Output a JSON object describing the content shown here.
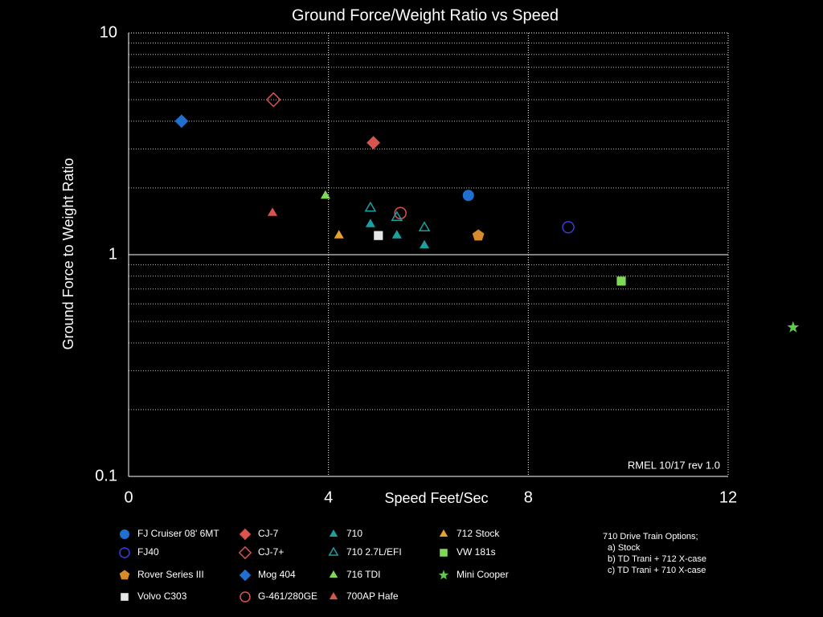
{
  "chart_data": {
    "type": "scatter",
    "title": "Ground Force/Weight Ratio vs Speed",
    "x_label": "Speed Feet/Sec",
    "y_label": "Ground Force to Weight Ratio",
    "xlim": [
      0,
      12
    ],
    "xticks": [
      0,
      4,
      8,
      12
    ],
    "ylim": [
      0.1,
      10
    ],
    "yticks": [
      10,
      1,
      0.1
    ],
    "log_y": true,
    "grid": true,
    "annotation": "RMEL 10/17 rev 1.0",
    "note": [
      "710 Drive Train Options;",
      "a) Stock",
      "b) TD Trani + 712 X-case",
      "c) TD Trani + 710 X-case"
    ],
    "series": [
      {
        "name": "FJ Cruiser 08' 6MT",
        "color": "#1f6fd1",
        "marker": "circle",
        "filled": true,
        "x": [
          6.8
        ],
        "values": [
          1.85
        ]
      },
      {
        "name": "FJ40",
        "color": "#3b3bdc",
        "marker": "circle",
        "filled": false,
        "x": [
          8.8
        ],
        "values": [
          1.33
        ]
      },
      {
        "name": "Rover Series III",
        "color": "#d98a2a",
        "marker": "pentagon",
        "filled": true,
        "x": [
          7.0
        ],
        "values": [
          1.22
        ]
      },
      {
        "name": "Volvo C303",
        "color": "#e6e6e6",
        "marker": "square",
        "filled": true,
        "x": [
          5.0
        ],
        "values": [
          1.22
        ]
      },
      {
        "name": "CJ-7",
        "color": "#d9534f",
        "marker": "diamond",
        "filled": true,
        "x": [
          4.9
        ],
        "values": [
          3.2
        ]
      },
      {
        "name": "CJ-7+",
        "color": "#d9534f",
        "marker": "diamond",
        "filled": false,
        "x": [
          2.9
        ],
        "values": [
          5
        ]
      },
      {
        "name": "Mog 404",
        "color": "#1f6fd1",
        "marker": "diamond",
        "filled": true,
        "x": [
          1.06
        ],
        "values": [
          4
        ]
      },
      {
        "name": "G-461/280GE",
        "color": "#d9534f",
        "marker": "circle",
        "filled": false,
        "x": [
          5.44
        ],
        "values": [
          1.54
        ]
      },
      {
        "name": "710",
        "color": "#1aa0a0",
        "marker": "triangle",
        "filled": true,
        "x": [
          4.84,
          5.37,
          5.92
        ],
        "values": [
          1.37,
          1.22,
          1.1
        ]
      },
      {
        "name": "710 2.7L/EFI",
        "color": "#1aa0a0",
        "marker": "triangle",
        "filled": false,
        "x": [
          4.84,
          5.37,
          5.92
        ],
        "values": [
          1.62,
          1.47,
          1.32
        ]
      },
      {
        "name": "716 TDI",
        "color": "#7ed957",
        "marker": "triangle",
        "filled": true,
        "x": [
          3.94
        ],
        "values": [
          1.84
        ]
      },
      {
        "name": "700AP Hafe",
        "color": "#d9534f",
        "marker": "triangle",
        "filled": true,
        "x": [
          2.88
        ],
        "values": [
          1.54
        ]
      },
      {
        "name": "712 Stock",
        "color": "#e8a030",
        "marker": "triangle",
        "filled": true,
        "x": [
          4.21
        ],
        "values": [
          1.22
        ]
      },
      {
        "name": "VW 181s",
        "color": "#7ed957",
        "marker": "square",
        "filled": true,
        "x": [
          9.86
        ],
        "values": [
          0.76
        ]
      },
      {
        "name": "Mini Cooper",
        "color": "#5fc94a",
        "marker": "star",
        "filled": true,
        "x": [
          13.3
        ],
        "values": [
          0.47
        ]
      }
    ]
  }
}
